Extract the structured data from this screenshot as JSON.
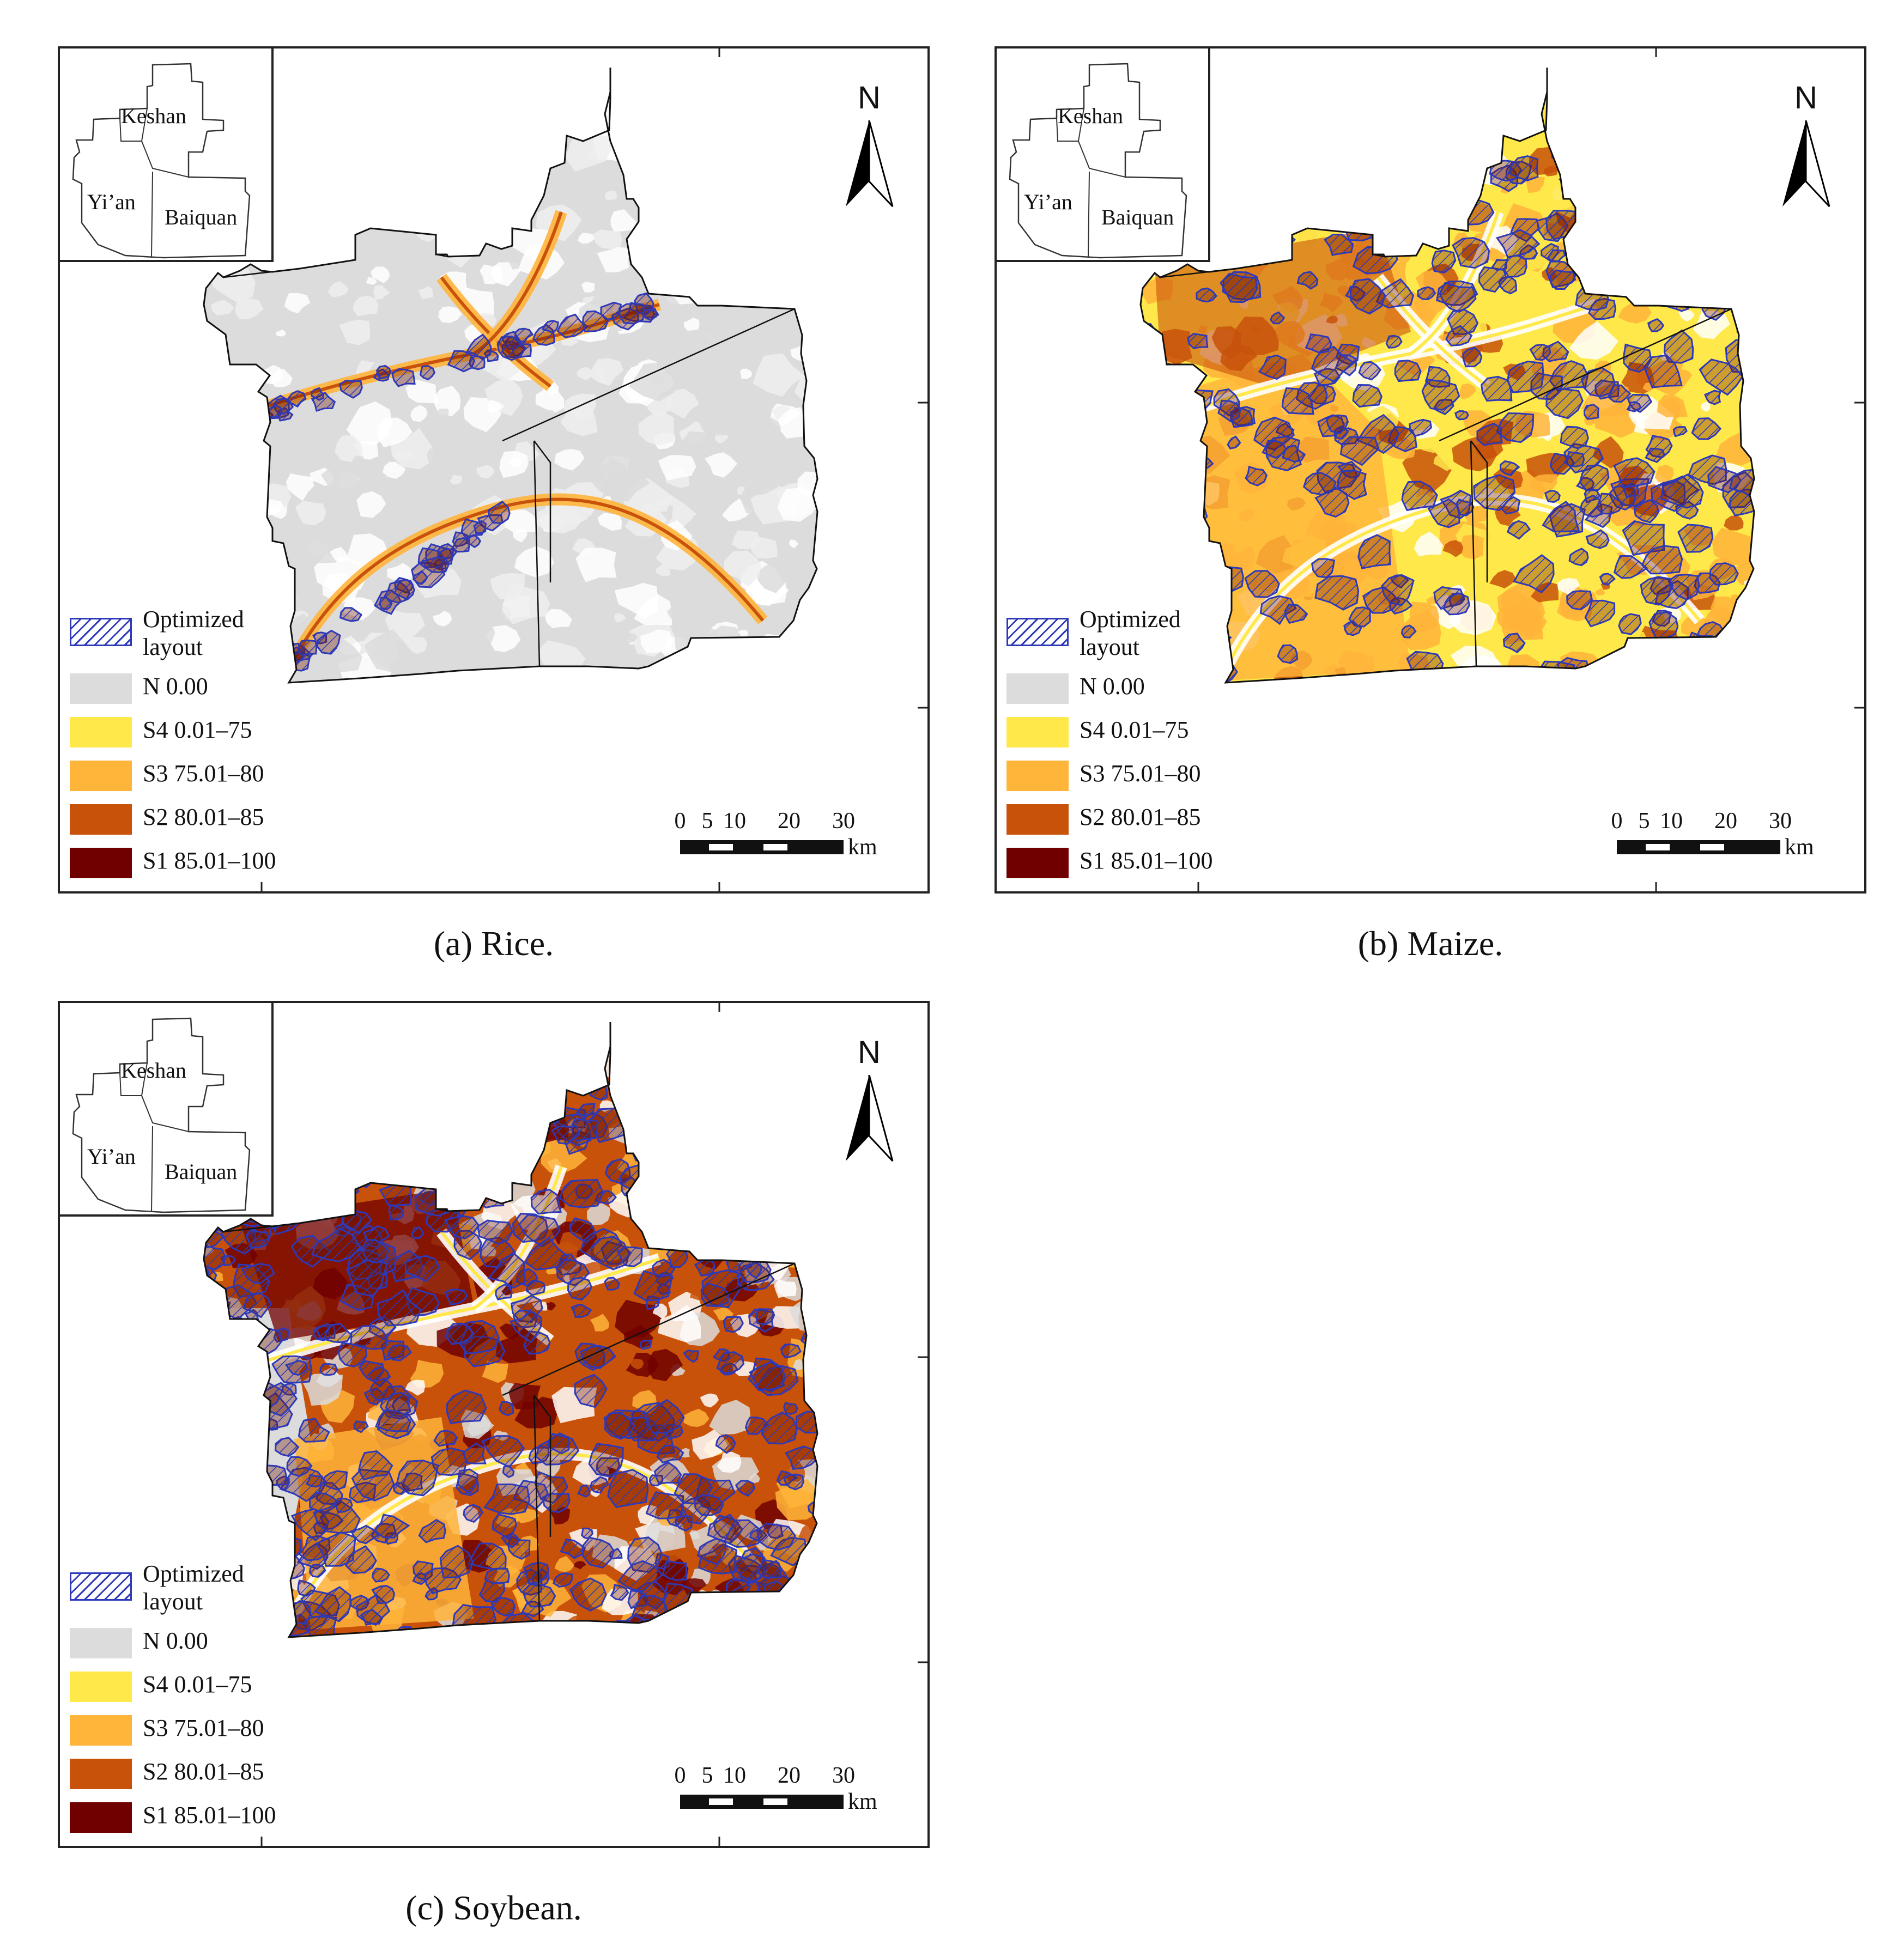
{
  "panels": [
    {
      "id": "a",
      "caption": "(a) Rice.",
      "dominant_class": "N",
      "optimized_density": "low",
      "inset": {
        "labels": [
          "Keshan",
          "Yi’an",
          "Baiquan"
        ]
      },
      "north_label": "N",
      "scale": {
        "ticks": [
          "0",
          "5",
          "10",
          "20",
          "30"
        ],
        "unit": "km"
      },
      "legend": [
        {
          "label": "Optimized layout",
          "color": "#2d39b8"
        },
        {
          "label": "N 0.00",
          "color": "#dcdcdc"
        },
        {
          "label": "S4 0.01–75",
          "color": "#ffe84a"
        },
        {
          "label": "S3 75.01–80",
          "color": "#ffb43a"
        },
        {
          "label": "S2 80.01–85",
          "color": "#c8520a"
        },
        {
          "label": "S1 85.01–100",
          "color": "#700000"
        }
      ]
    },
    {
      "id": "b",
      "caption": "(b) Maize.",
      "dominant_class": "S4",
      "optimized_density": "high",
      "inset": {
        "labels": [
          "Keshan",
          "Yi’an",
          "Baiquan"
        ]
      },
      "north_label": "N",
      "scale": {
        "ticks": [
          "0",
          "5",
          "10",
          "20",
          "30"
        ],
        "unit": "km"
      },
      "legend": [
        {
          "label": "Optimized layout",
          "color": "#2d39b8"
        },
        {
          "label": "N 0.00",
          "color": "#dcdcdc"
        },
        {
          "label": "S4 0.01–75",
          "color": "#ffe84a"
        },
        {
          "label": "S3 75.01–80",
          "color": "#ffb43a"
        },
        {
          "label": "S2 80.01–85",
          "color": "#c8520a"
        },
        {
          "label": "S1 85.01–100",
          "color": "#700000"
        }
      ]
    },
    {
      "id": "c",
      "caption": "(c) Soybean.",
      "dominant_class": "S2",
      "optimized_density": "very-high",
      "inset": {
        "labels": [
          "Keshan",
          "Yi’an",
          "Baiquan"
        ]
      },
      "north_label": "N",
      "scale": {
        "ticks": [
          "0",
          "5",
          "10",
          "20",
          "30"
        ],
        "unit": "km"
      },
      "legend": [
        {
          "label": "Optimized layout",
          "color": "#2d39b8"
        },
        {
          "label": "N 0.00",
          "color": "#dcdcdc"
        },
        {
          "label": "S4 0.01–75",
          "color": "#ffe84a"
        },
        {
          "label": "S3 75.01–80",
          "color": "#ffb43a"
        },
        {
          "label": "S2 80.01–85",
          "color": "#c8520a"
        },
        {
          "label": "S1 85.01–100",
          "color": "#700000"
        }
      ]
    }
  ]
}
